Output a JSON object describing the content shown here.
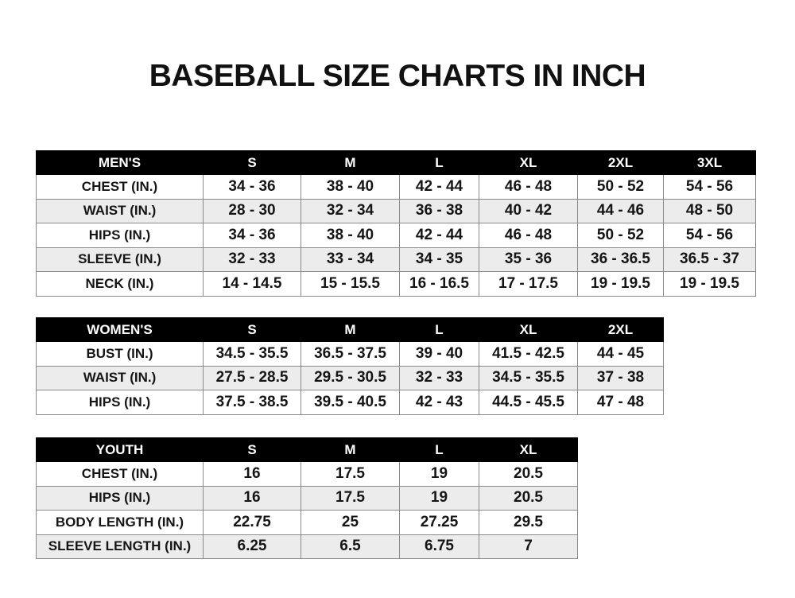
{
  "title": "BASEBALL SIZE CHARTS IN INCH",
  "colors": {
    "header_bg": "#000000",
    "header_text": "#ffffff",
    "alt_row": "#ececec",
    "border": "#8a8a8a"
  },
  "tables": [
    {
      "id": "men",
      "header": [
        "MEN'S",
        "S",
        "M",
        "L",
        "XL",
        "2XL",
        "3XL"
      ],
      "rows": [
        [
          "CHEST (IN.)",
          "34 - 36",
          "38 - 40",
          "42 - 44",
          "46 - 48",
          "50 - 52",
          "54 - 56"
        ],
        [
          "WAIST (IN.)",
          "28 - 30",
          "32 - 34",
          "36 - 38",
          "40 - 42",
          "44 - 46",
          "48 - 50"
        ],
        [
          "HIPS (IN.)",
          "34 - 36",
          "38 - 40",
          "42 - 44",
          "46 - 48",
          "50 - 52",
          "54 - 56"
        ],
        [
          "SLEEVE (IN.)",
          "32 - 33",
          "33 - 34",
          "34 - 35",
          "35 - 36",
          "36 - 36.5",
          "36.5 - 37"
        ],
        [
          "NECK (IN.)",
          "14 - 14.5",
          "15 - 15.5",
          "16 - 16.5",
          "17 - 17.5",
          "19 - 19.5",
          "19 - 19.5"
        ]
      ]
    },
    {
      "id": "women",
      "header": [
        "WOMEN'S",
        "S",
        "M",
        "L",
        "XL",
        "2XL"
      ],
      "rows": [
        [
          "BUST (IN.)",
          "34.5 - 35.5",
          "36.5 - 37.5",
          "39 - 40",
          "41.5 - 42.5",
          "44 - 45"
        ],
        [
          "WAIST (IN.)",
          "27.5 - 28.5",
          "29.5 - 30.5",
          "32 - 33",
          "34.5 - 35.5",
          "37 - 38"
        ],
        [
          "HIPS (IN.)",
          "37.5 - 38.5",
          "39.5 - 40.5",
          "42 - 43",
          "44.5 - 45.5",
          "47 - 48"
        ]
      ]
    },
    {
      "id": "youth",
      "header": [
        "YOUTH",
        "S",
        "M",
        "L",
        "XL"
      ],
      "rows": [
        [
          "CHEST (IN.)",
          "16",
          "17.5",
          "19",
          "20.5"
        ],
        [
          "HIPS (IN.)",
          "16",
          "17.5",
          "19",
          "20.5"
        ],
        [
          "BODY LENGTH (IN.)",
          "22.75",
          "25",
          "27.25",
          "29.5"
        ],
        [
          "SLEEVE LENGTH (IN.)",
          "6.25",
          "6.5",
          "6.75",
          "7"
        ]
      ]
    }
  ]
}
